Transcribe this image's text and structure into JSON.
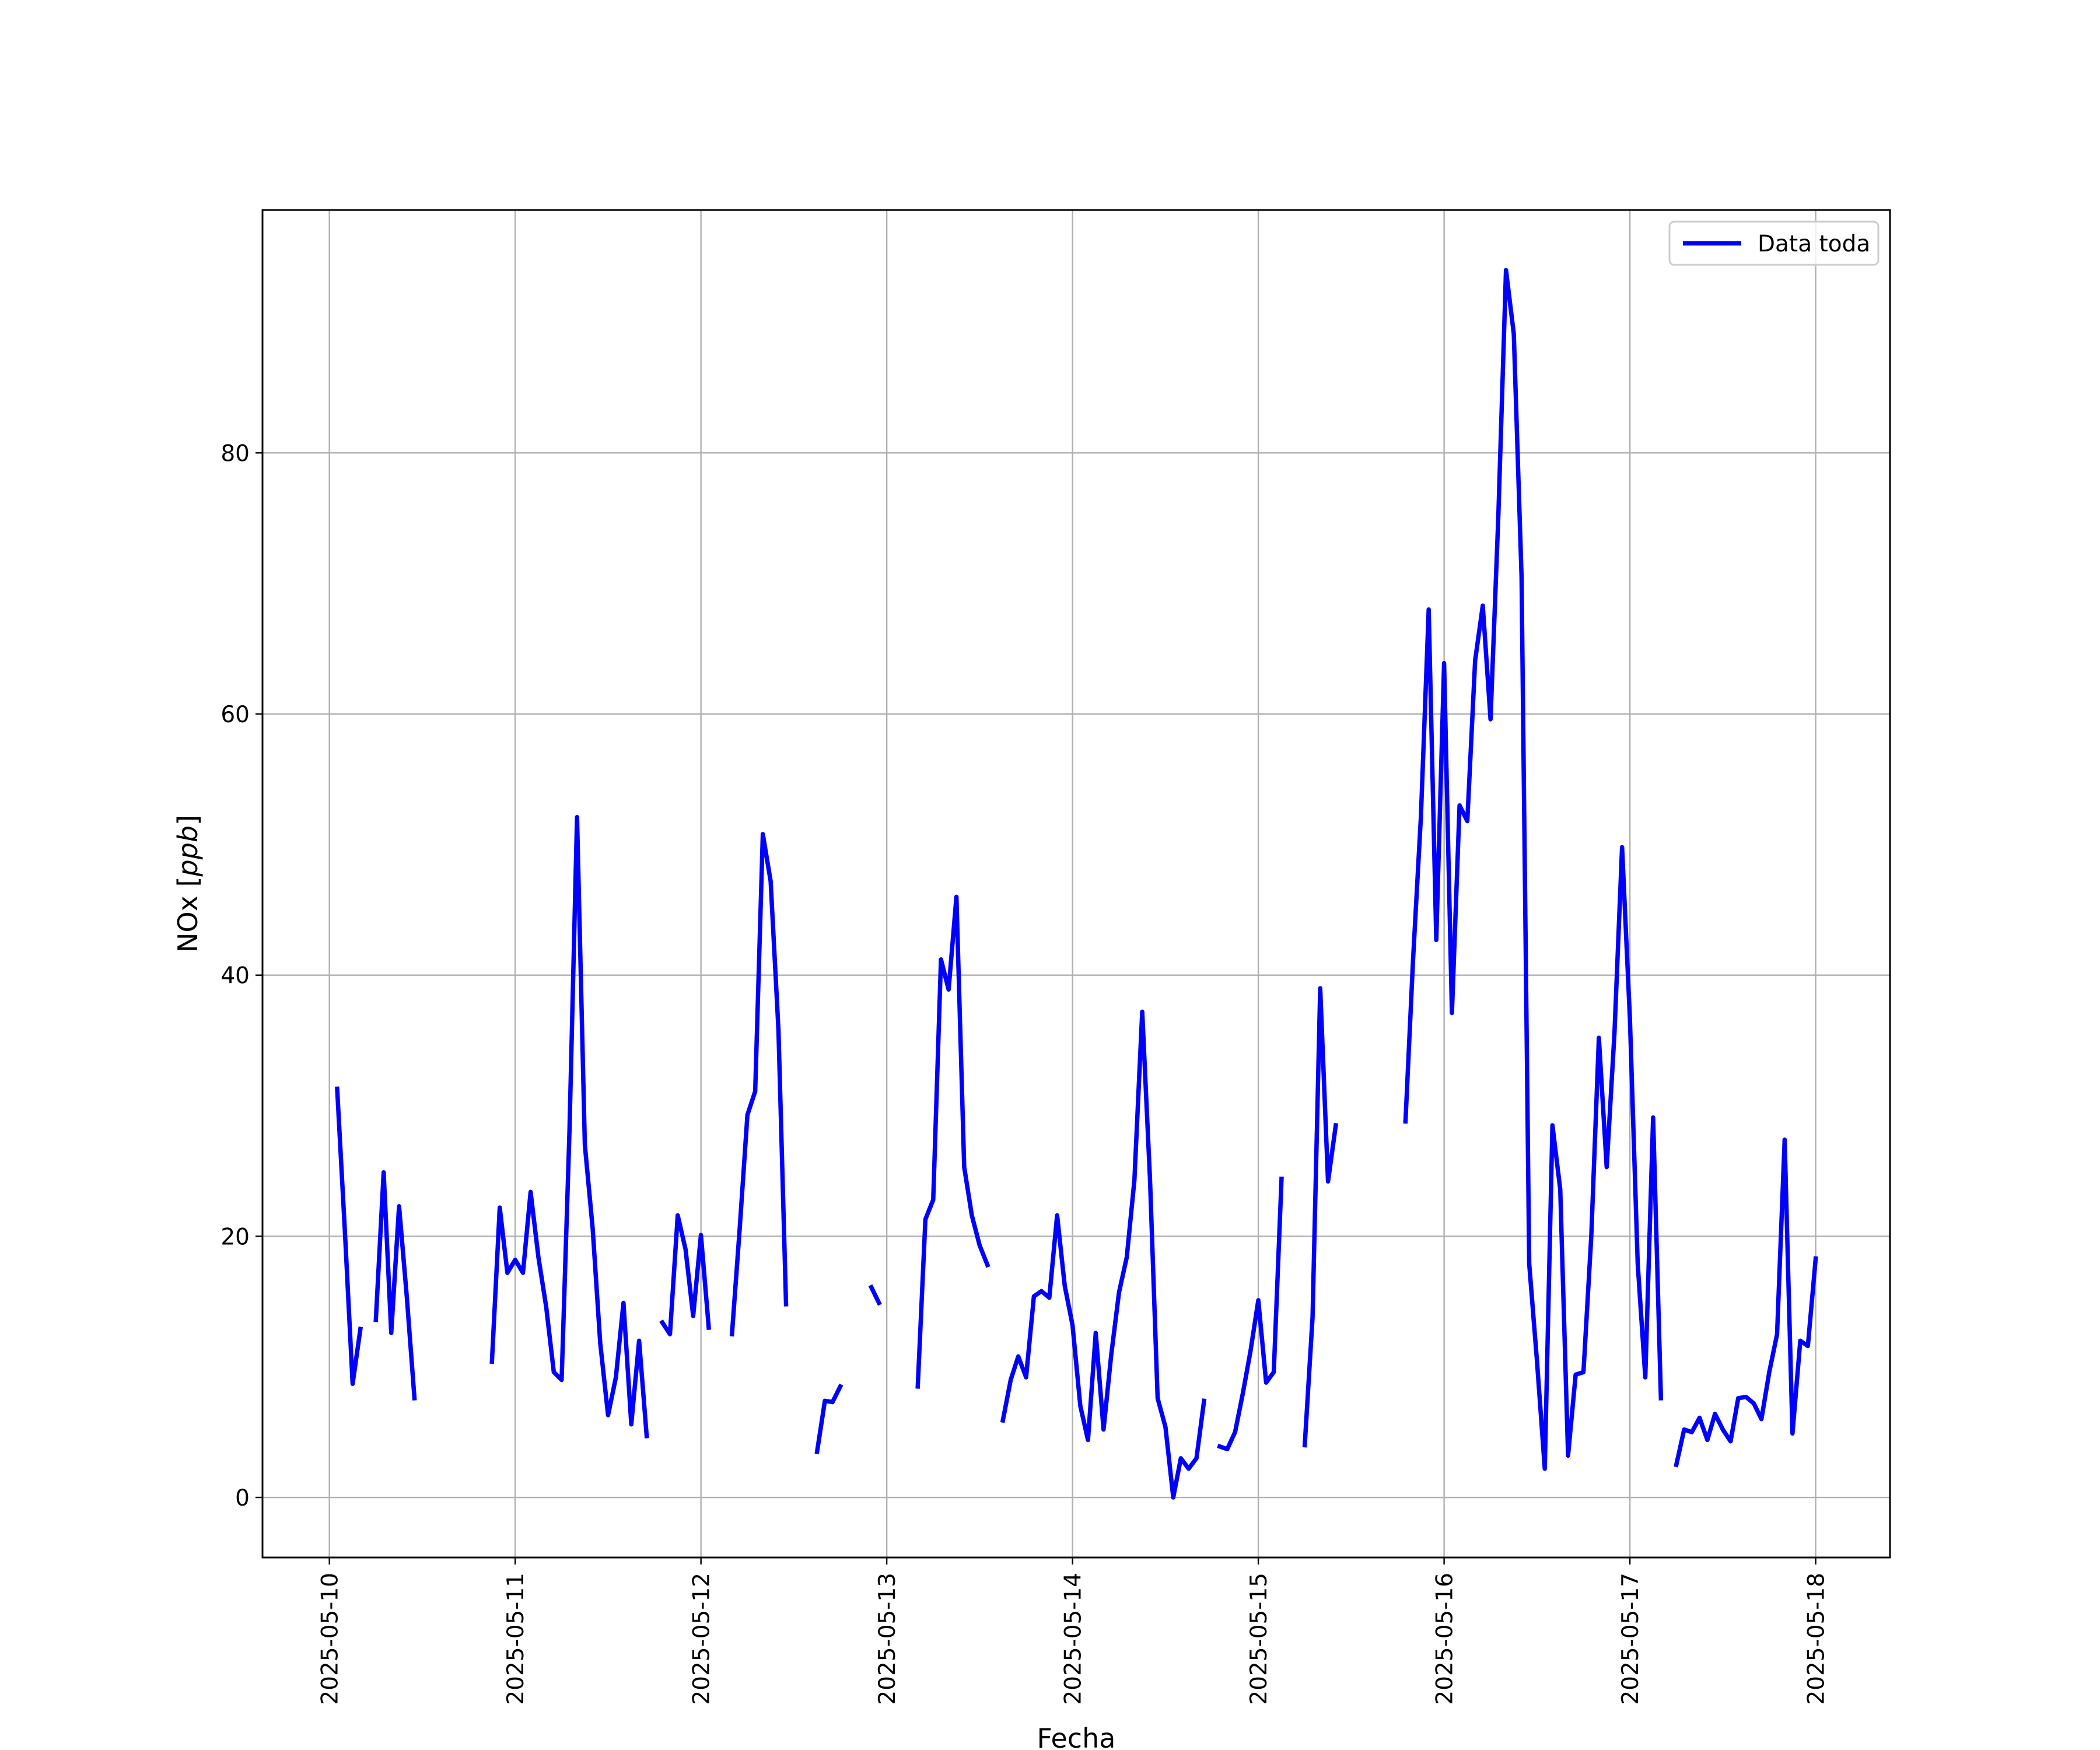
{
  "chart_data": {
    "type": "line",
    "xlabel": "Fecha",
    "ylabel_prefix": "NOx [",
    "ylabel_math": "ppb",
    "ylabel_suffix": "]",
    "x_ticks": [
      "2025-05-10",
      "2025-05-11",
      "2025-05-12",
      "2025-05-13",
      "2025-05-14",
      "2025-05-15",
      "2025-05-16",
      "2025-05-17",
      "2025-05-18"
    ],
    "y_ticks": [
      "0",
      "20",
      "40",
      "60",
      "80"
    ],
    "y_tick_values": [
      0,
      20,
      40,
      60,
      80
    ],
    "xlim": [
      -0.36,
      8.4
    ],
    "ylim": [
      -4.6,
      98.6
    ],
    "grid": true,
    "legend_position": "top-right",
    "series": [
      {
        "name": "Data toda",
        "color": "#0000ff",
        "segments": [
          [
            [
              0.042,
              31.3
            ],
            [
              0.083,
              20.5
            ],
            [
              0.125,
              8.7
            ],
            [
              0.167,
              12.9
            ]
          ],
          [
            [
              0.25,
              13.6
            ],
            [
              0.292,
              24.9
            ],
            [
              0.333,
              12.6
            ],
            [
              0.375,
              22.3
            ],
            [
              0.417,
              15.3
            ],
            [
              0.458,
              7.6
            ]
          ],
          [
            [
              0.875,
              10.4
            ],
            [
              0.917,
              22.2
            ],
            [
              0.958,
              17.2
            ],
            [
              1.0,
              18.2
            ],
            [
              1.042,
              17.2
            ],
            [
              1.083,
              23.4
            ],
            [
              1.125,
              18.4
            ],
            [
              1.167,
              14.6
            ],
            [
              1.208,
              9.6
            ],
            [
              1.25,
              9.0
            ],
            [
              1.292,
              28.0
            ],
            [
              1.333,
              52.1
            ],
            [
              1.375,
              27.0
            ],
            [
              1.417,
              20.6
            ],
            [
              1.458,
              11.8
            ],
            [
              1.5,
              6.3
            ],
            [
              1.542,
              9.2
            ],
            [
              1.583,
              14.9
            ],
            [
              1.625,
              5.6
            ],
            [
              1.667,
              12.0
            ],
            [
              1.708,
              4.7
            ]
          ],
          [
            [
              1.792,
              13.4
            ],
            [
              1.833,
              12.5
            ],
            [
              1.875,
              21.6
            ],
            [
              1.917,
              19.0
            ],
            [
              1.958,
              13.9
            ],
            [
              2.0,
              20.1
            ],
            [
              2.042,
              13.0
            ]
          ],
          [
            [
              2.167,
              12.5
            ],
            [
              2.208,
              20.5
            ],
            [
              2.25,
              29.3
            ],
            [
              2.292,
              31.1
            ],
            [
              2.333,
              50.8
            ],
            [
              2.375,
              47.2
            ],
            [
              2.417,
              35.8
            ],
            [
              2.458,
              14.8
            ]
          ],
          [
            [
              2.625,
              3.5
            ],
            [
              2.667,
              7.4
            ],
            [
              2.708,
              7.3
            ],
            [
              2.75,
              8.5
            ]
          ],
          [
            [
              2.917,
              16.1
            ],
            [
              2.958,
              14.9
            ]
          ],
          [
            [
              3.167,
              8.5
            ],
            [
              3.208,
              21.3
            ],
            [
              3.25,
              22.8
            ],
            [
              3.292,
              41.2
            ],
            [
              3.333,
              38.9
            ],
            [
              3.375,
              46.0
            ],
            [
              3.417,
              25.3
            ],
            [
              3.458,
              21.6
            ],
            [
              3.5,
              19.3
            ],
            [
              3.542,
              17.8
            ]
          ],
          [
            [
              3.625,
              5.9
            ],
            [
              3.667,
              9.0
            ],
            [
              3.708,
              10.8
            ],
            [
              3.75,
              9.2
            ],
            [
              3.792,
              15.4
            ],
            [
              3.833,
              15.8
            ],
            [
              3.875,
              15.3
            ],
            [
              3.917,
              21.6
            ],
            [
              3.958,
              16.2
            ],
            [
              4.0,
              13.2
            ],
            [
              4.042,
              7.0
            ],
            [
              4.083,
              4.4
            ],
            [
              4.125,
              12.6
            ],
            [
              4.167,
              5.2
            ],
            [
              4.208,
              10.9
            ],
            [
              4.25,
              15.7
            ],
            [
              4.292,
              18.4
            ],
            [
              4.333,
              24.3
            ],
            [
              4.375,
              37.2
            ],
            [
              4.417,
              24.4
            ],
            [
              4.458,
              7.6
            ],
            [
              4.5,
              5.4
            ],
            [
              4.542,
              0.0
            ],
            [
              4.583,
              3.0
            ],
            [
              4.625,
              2.2
            ],
            [
              4.667,
              3.0
            ],
            [
              4.708,
              7.4
            ]
          ],
          [
            [
              4.792,
              3.9
            ],
            [
              4.833,
              3.7
            ],
            [
              4.875,
              5.0
            ],
            [
              4.917,
              8.0
            ],
            [
              4.958,
              11.2
            ],
            [
              5.0,
              15.1
            ],
            [
              5.042,
              8.8
            ],
            [
              5.083,
              9.6
            ],
            [
              5.125,
              24.4
            ]
          ],
          [
            [
              5.25,
              4.0
            ],
            [
              5.292,
              13.8
            ],
            [
              5.333,
              39.0
            ],
            [
              5.375,
              24.2
            ],
            [
              5.417,
              28.5
            ]
          ],
          [
            [
              5.792,
              28.8
            ],
            [
              5.833,
              41.2
            ],
            [
              5.875,
              52.1
            ],
            [
              5.917,
              68.0
            ],
            [
              5.958,
              42.7
            ],
            [
              6.0,
              63.9
            ],
            [
              6.042,
              37.1
            ],
            [
              6.083,
              53.0
            ],
            [
              6.125,
              51.8
            ],
            [
              6.167,
              64.1
            ],
            [
              6.208,
              68.3
            ],
            [
              6.25,
              59.6
            ],
            [
              6.292,
              75.2
            ],
            [
              6.333,
              94.0
            ],
            [
              6.375,
              89.1
            ],
            [
              6.417,
              70.5
            ],
            [
              6.458,
              17.9
            ],
            [
              6.5,
              10.4
            ],
            [
              6.542,
              2.2
            ],
            [
              6.583,
              28.5
            ],
            [
              6.625,
              23.6
            ],
            [
              6.667,
              3.2
            ],
            [
              6.708,
              9.4
            ],
            [
              6.75,
              9.6
            ],
            [
              6.792,
              20.0
            ],
            [
              6.833,
              35.2
            ],
            [
              6.875,
              25.3
            ],
            [
              6.917,
              35.6
            ],
            [
              6.958,
              49.8
            ],
            [
              7.0,
              36.7
            ],
            [
              7.042,
              17.9
            ],
            [
              7.083,
              9.2
            ],
            [
              7.125,
              29.1
            ],
            [
              7.167,
              7.6
            ]
          ],
          [
            [
              7.25,
              2.5
            ],
            [
              7.292,
              5.2
            ],
            [
              7.333,
              5.0
            ],
            [
              7.375,
              6.1
            ],
            [
              7.417,
              4.4
            ],
            [
              7.458,
              6.4
            ],
            [
              7.5,
              5.2
            ],
            [
              7.542,
              4.3
            ],
            [
              7.583,
              7.6
            ],
            [
              7.625,
              7.7
            ],
            [
              7.667,
              7.2
            ],
            [
              7.708,
              6.0
            ],
            [
              7.75,
              9.6
            ],
            [
              7.792,
              12.5
            ],
            [
              7.833,
              27.4
            ],
            [
              7.875,
              4.9
            ],
            [
              7.917,
              12.0
            ],
            [
              7.958,
              11.6
            ],
            [
              8.0,
              18.3
            ]
          ]
        ]
      }
    ]
  }
}
